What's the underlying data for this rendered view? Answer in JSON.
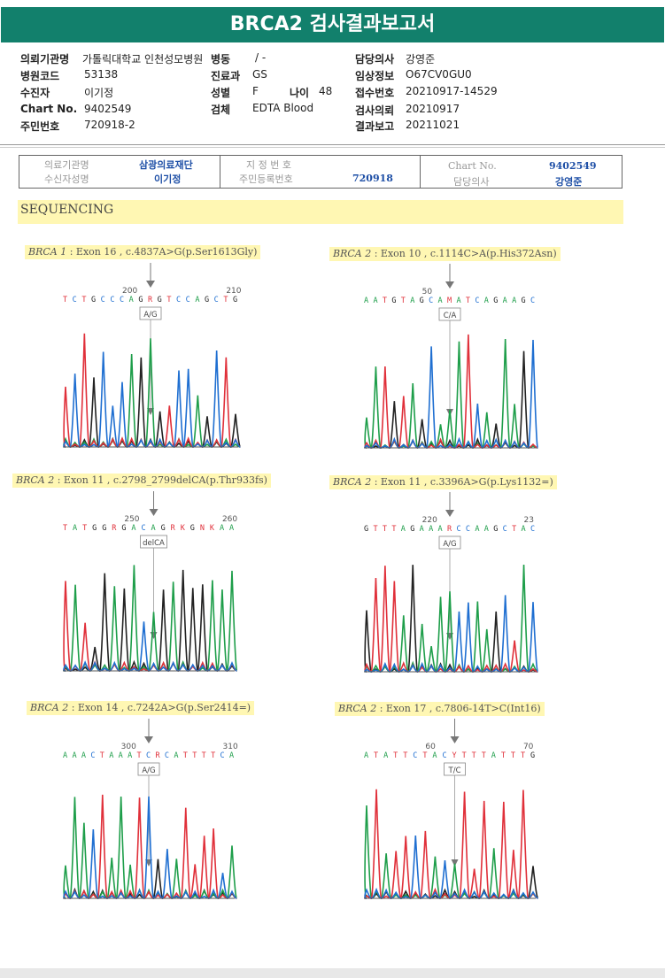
{
  "title": "BRCA2 검사결과보고서",
  "header": {
    "rows": [
      [
        {
          "l": "의뢰기관명",
          "v": "가톨릭대학교 인천성모병원"
        },
        {
          "l": "병동",
          "v": "/ -"
        },
        {
          "l": "담당의사",
          "v": "강영준"
        }
      ],
      [
        {
          "l": "병원코드",
          "v": "53138"
        },
        {
          "l": "진료과",
          "v": "GS"
        },
        {
          "l": "임상정보",
          "v": "O67CV0GU0"
        }
      ],
      [
        {
          "l": "수진자",
          "v": "이기정"
        },
        {
          "l": "성별",
          "v": "F"
        },
        {
          "l": "나이",
          "v": "48"
        },
        {
          "l": "접수번호",
          "v": "20210917-14529"
        }
      ],
      [
        {
          "l": "Chart No.",
          "v": "9402549"
        },
        {
          "l": "검체",
          "v": "EDTA Blood"
        },
        {
          "l": "검사의뢰",
          "v": "20210917"
        }
      ],
      [
        {
          "l": "주민번호",
          "v": "720918-2"
        },
        {
          "l": "결과보고",
          "v": "20211021"
        }
      ]
    ]
  },
  "stamp": {
    "inst_label": "의료기관명",
    "inst_value": "삼광의료재단",
    "recv_label": "수신자성명",
    "recv_value": "이기정",
    "code_label": "지 정 번 호",
    "rrn_label": "주민등록번호",
    "rrn_value": "720918",
    "chart_label": "Chart No.",
    "chart_value": "9402549",
    "doctor_label": "담당의사",
    "doctor_value": "강영준"
  },
  "section": "SEQUENCING",
  "panels": [
    {
      "gene": "BRCA 1",
      "detail": " : Exon 16 , c.4837A>G(p.Ser1613Gly)",
      "num_left": "200",
      "num_right": "210",
      "bases": "TCTGCCCAGRGTCCAGCTG",
      "box": "A/G"
    },
    {
      "gene": "BRCA 2",
      "detail": " : Exon 10 , c.1114C>A(p.His372Asn)",
      "num_left": "50",
      "num_right": "",
      "bases": "AATGTAGCAMATCAGAAGC",
      "box": "C/A"
    },
    {
      "gene": "BRCA 2",
      "detail": " : Exon 11 , c.2798_2799delCA(p.Thr933fs)",
      "num_left": "250",
      "num_right": "260",
      "bases": "TATGGRGACAGRKGNKAA",
      "box": "delCA"
    },
    {
      "gene": "BRCA 2",
      "detail": " : Exon 11 , c.3396A>G(p.Lys1132=)",
      "num_left": "220",
      "num_right": "23",
      "bases": "GTTTAGAAARCCAAGCTAC",
      "box": "A/G"
    },
    {
      "gene": "BRCA 2",
      "detail": " : Exon 14 , c.7242A>G(p.Ser2414=)",
      "num_left": "300",
      "num_right": "310",
      "bases": "AAACTAAATCRCATTTTCA",
      "box": "A/G"
    },
    {
      "gene": "BRCA 2",
      "detail": " : Exon 17 , c.7806-14T>C(Int16)",
      "num_left": "60",
      "num_right": "70",
      "bases": "ATATTCTACYTTTATTTG",
      "box": "T/C"
    }
  ]
}
